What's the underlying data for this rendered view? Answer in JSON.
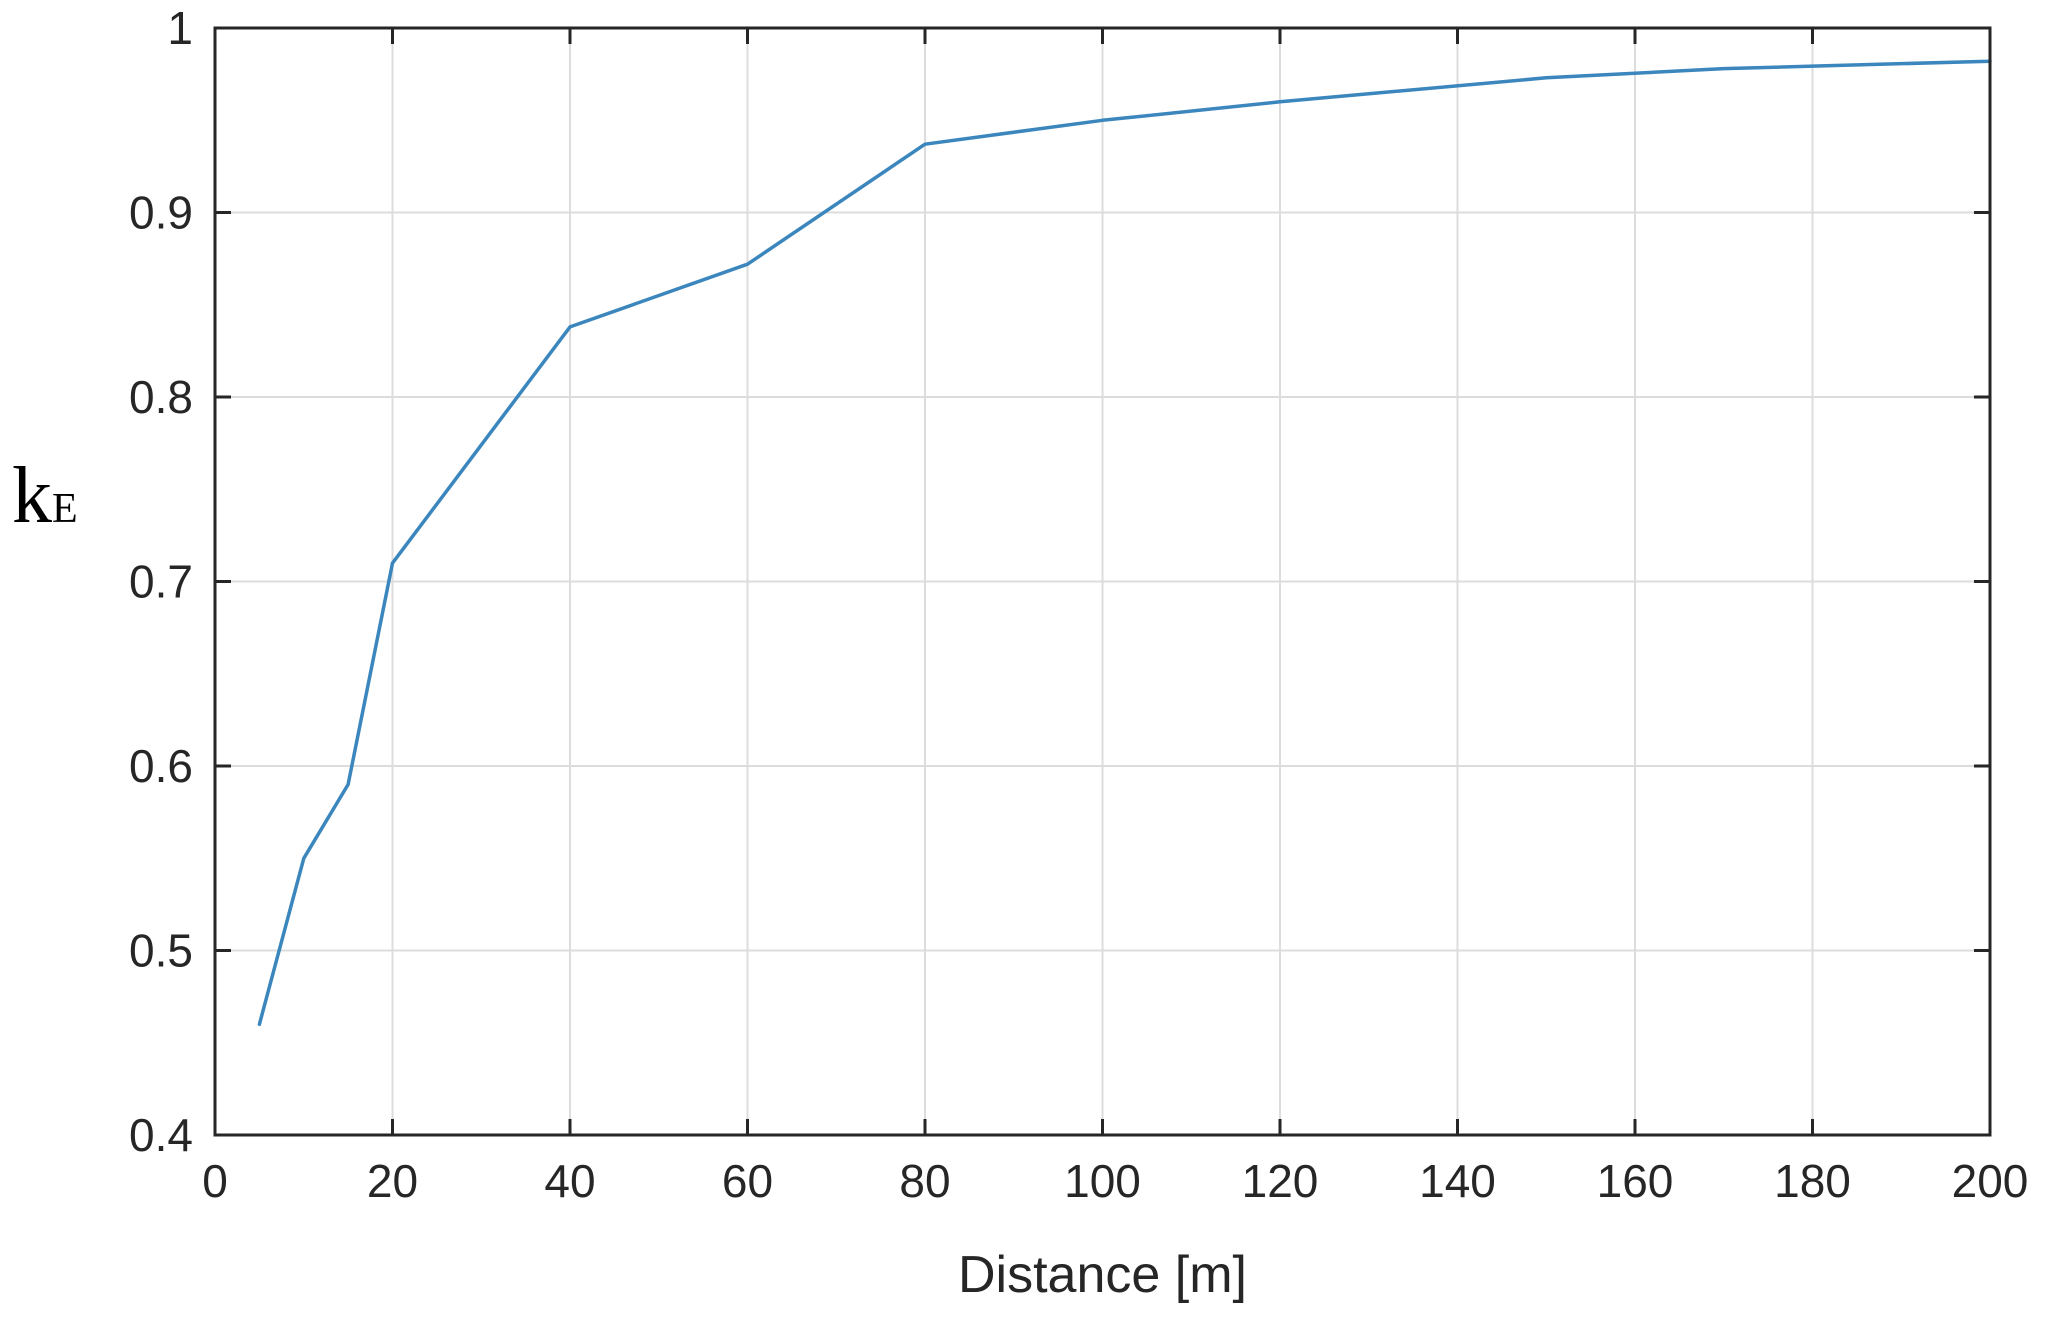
{
  "chart_data": {
    "type": "line",
    "title": "",
    "xlabel": "Distance [m]",
    "ylabel": {
      "main": "k",
      "subscript": "E"
    },
    "xlim": [
      0,
      200
    ],
    "ylim": [
      0.4,
      1
    ],
    "xticks": [
      0,
      20,
      40,
      60,
      80,
      100,
      120,
      140,
      160,
      180,
      200
    ],
    "yticks": [
      0.4,
      0.5,
      0.6,
      0.7,
      0.8,
      0.9,
      1
    ],
    "xtick_labels": [
      "0",
      "20",
      "40",
      "60",
      "80",
      "100",
      "120",
      "140",
      "160",
      "180",
      "200"
    ],
    "ytick_labels": [
      "0.4",
      "0.5",
      "0.6",
      "0.7",
      "0.8",
      "0.9",
      "1"
    ],
    "grid": true,
    "legend": "none",
    "series": [
      {
        "color": "#3a86bd",
        "x": [
          5,
          10,
          15,
          20,
          40,
          60,
          80,
          100,
          120,
          150,
          170,
          200
        ],
        "y": [
          0.46,
          0.55,
          0.59,
          0.71,
          0.838,
          0.872,
          0.937,
          0.95,
          0.96,
          0.973,
          0.978,
          0.982
        ]
      }
    ]
  }
}
